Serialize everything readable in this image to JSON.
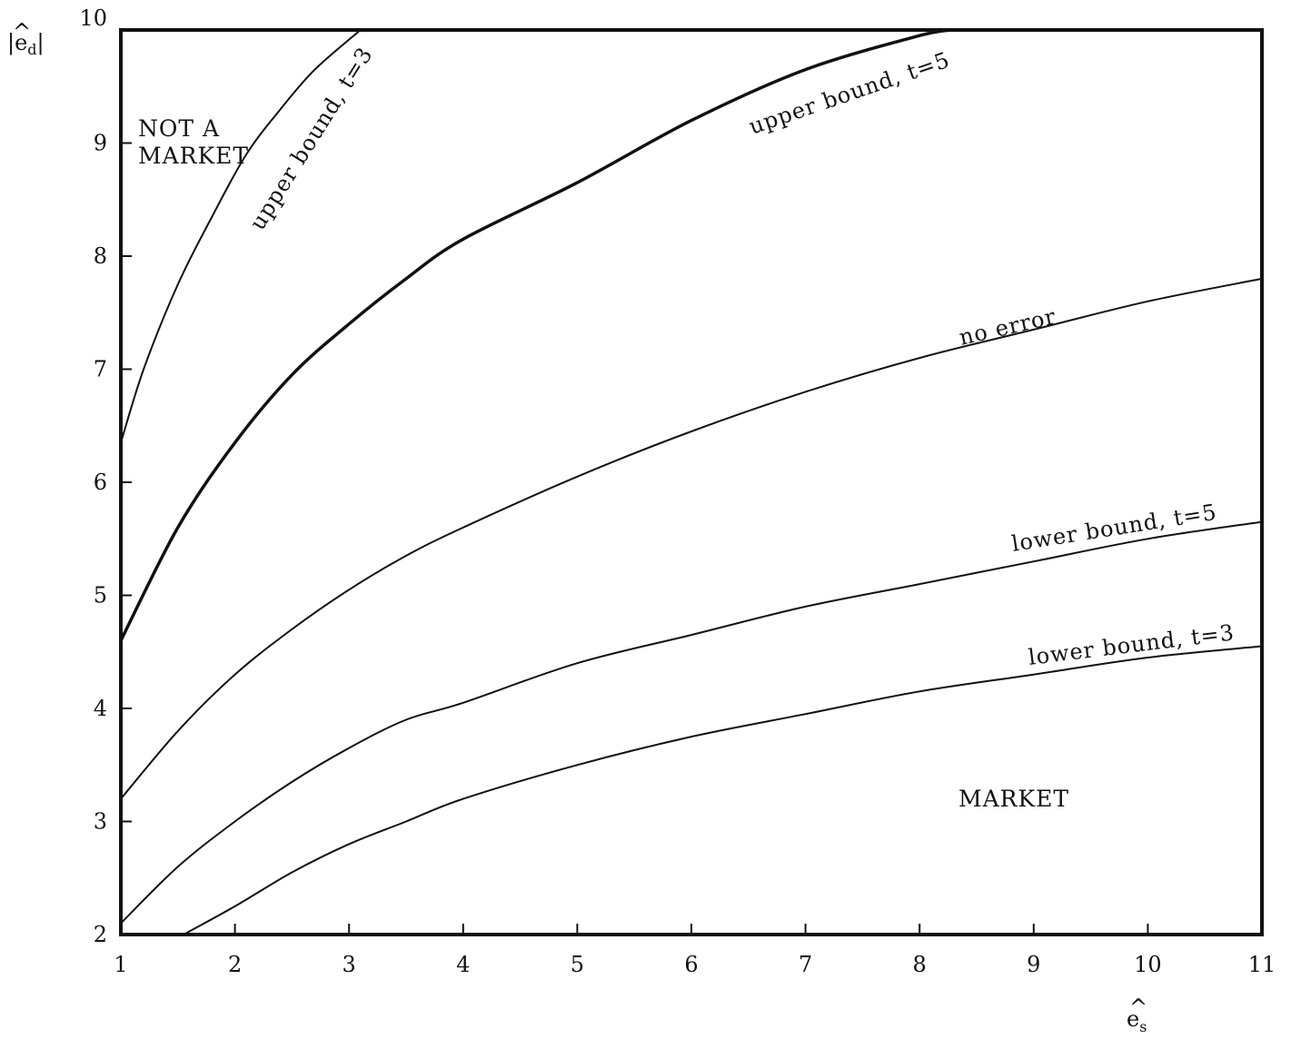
{
  "chart_data": {
    "type": "line",
    "title": "",
    "xlabel": "ê_s",
    "ylabel": "|ê_d|",
    "xlim": [
      1,
      11
    ],
    "ylim": [
      2,
      10
    ],
    "x_ticks": [
      "1",
      "2",
      "3",
      "4",
      "5",
      "6",
      "7",
      "8",
      "9",
      "10",
      "11"
    ],
    "y_ticks": [
      "2",
      "3",
      "4",
      "5",
      "6",
      "7",
      "8",
      "9",
      "10"
    ],
    "grid": false,
    "series": [
      {
        "name": "upper bound, t=3",
        "stroke": "thin",
        "x": [
          1.0,
          1.2,
          1.5,
          1.8,
          2.1,
          2.4,
          2.7,
          3.1
        ],
        "y": [
          6.35,
          7.0,
          7.75,
          8.35,
          8.9,
          9.3,
          9.65,
          10.0
        ]
      },
      {
        "name": "upper bound, t=5",
        "stroke": "thick",
        "x": [
          1.0,
          1.5,
          2.0,
          2.5,
          3.0,
          3.5,
          4.0,
          5.0,
          6.0,
          7.0,
          8.0,
          8.3
        ],
        "y": [
          4.6,
          5.6,
          6.35,
          6.95,
          7.4,
          7.8,
          8.15,
          8.65,
          9.2,
          9.65,
          9.95,
          10.0
        ]
      },
      {
        "name": "no error",
        "stroke": "thin",
        "x": [
          1.0,
          1.5,
          2.0,
          2.5,
          3.0,
          3.5,
          4.0,
          5.0,
          6.0,
          7.0,
          8.0,
          9.0,
          10.0,
          11.0
        ],
        "y": [
          3.2,
          3.8,
          4.3,
          4.7,
          5.05,
          5.35,
          5.6,
          6.05,
          6.45,
          6.8,
          7.1,
          7.35,
          7.6,
          7.8
        ]
      },
      {
        "name": "lower bound, t=5",
        "stroke": "thin",
        "x": [
          1.0,
          1.5,
          2.0,
          2.5,
          3.0,
          3.5,
          4.0,
          5.0,
          6.0,
          7.0,
          8.0,
          9.0,
          10.0,
          11.0
        ],
        "y": [
          2.1,
          2.6,
          3.0,
          3.35,
          3.65,
          3.9,
          4.05,
          4.4,
          4.65,
          4.9,
          5.1,
          5.3,
          5.5,
          5.65
        ]
      },
      {
        "name": "lower bound, t=3",
        "stroke": "thin",
        "x": [
          1.55,
          2.0,
          2.5,
          3.0,
          3.5,
          4.0,
          5.0,
          6.0,
          7.0,
          8.0,
          9.0,
          10.0,
          11.0
        ],
        "y": [
          2.0,
          2.25,
          2.55,
          2.8,
          3.0,
          3.2,
          3.5,
          3.75,
          3.95,
          4.15,
          4.3,
          4.45,
          4.55
        ]
      }
    ],
    "region_labels": {
      "not_market_line1": "NOT A",
      "not_market_line2": "MARKET",
      "market": "MARKET"
    }
  }
}
